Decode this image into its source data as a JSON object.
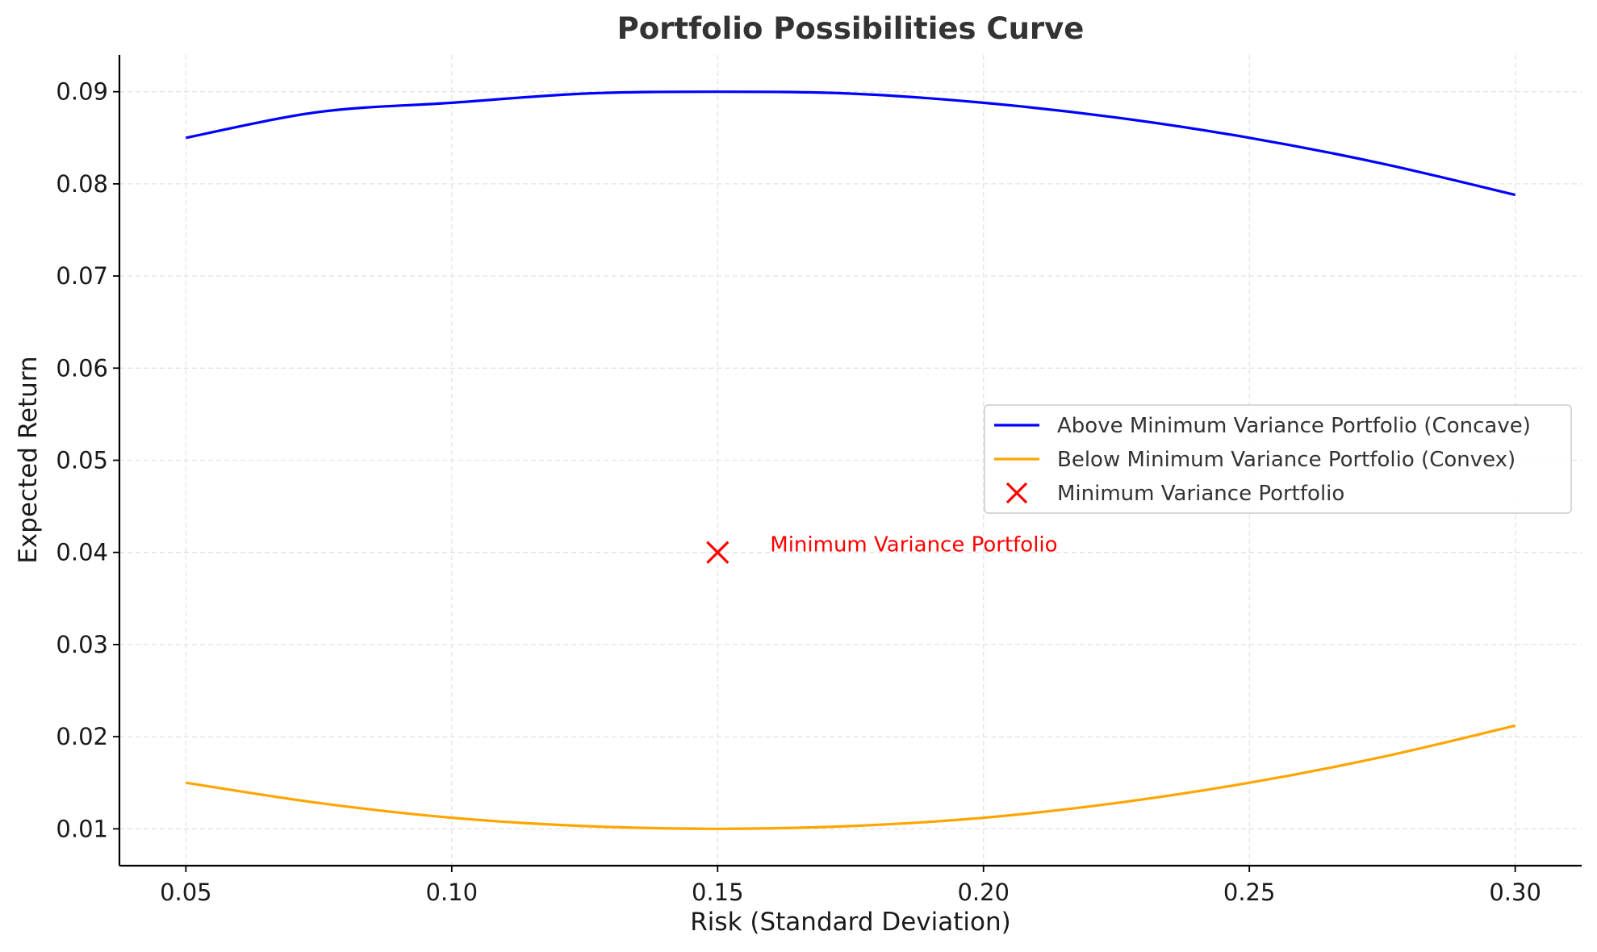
{
  "chart_data": {
    "type": "line",
    "title": "Portfolio Possibilities Curve",
    "xlabel": "Risk (Standard Deviation)",
    "ylabel": "Expected Return",
    "xlim": [
      0.0375,
      0.3125
    ],
    "ylim": [
      0.006,
      0.094
    ],
    "xticks": [
      0.05,
      0.1,
      0.15,
      0.2,
      0.25,
      0.3
    ],
    "xtick_labels": [
      "0.05",
      "0.10",
      "0.15",
      "0.20",
      "0.25",
      "0.30"
    ],
    "yticks": [
      0.01,
      0.02,
      0.03,
      0.04,
      0.05,
      0.06,
      0.07,
      0.08,
      0.09
    ],
    "ytick_labels": [
      "0.01",
      "0.02",
      "0.03",
      "0.04",
      "0.05",
      "0.06",
      "0.07",
      "0.08",
      "0.09"
    ],
    "grid": true,
    "legend_position": "center-right",
    "series": [
      {
        "name": "Above Minimum Variance Portfolio (Concave)",
        "color": "#0000ff",
        "x": [
          0.05,
          0.075,
          0.1,
          0.125,
          0.15,
          0.175,
          0.2,
          0.225,
          0.25,
          0.275,
          0.3
        ],
        "y": [
          0.085,
          0.0878,
          0.0888,
          0.0898,
          0.09,
          0.0898,
          0.0888,
          0.0872,
          0.085,
          0.0822,
          0.0788
        ]
      },
      {
        "name": "Below Minimum Variance Portfolio (Convex)",
        "color": "#ffa500",
        "x": [
          0.05,
          0.075,
          0.1,
          0.125,
          0.15,
          0.175,
          0.2,
          0.225,
          0.25,
          0.275,
          0.3
        ],
        "y": [
          0.015,
          0.0128,
          0.0112,
          0.0103,
          0.01,
          0.0103,
          0.0112,
          0.0128,
          0.015,
          0.0178,
          0.0212
        ]
      }
    ],
    "points": [
      {
        "name": "Minimum Variance Portfolio",
        "marker": "x",
        "color": "#ff0000",
        "x": 0.15,
        "y": 0.04,
        "annotation": "Minimum Variance Portfolio"
      }
    ]
  }
}
